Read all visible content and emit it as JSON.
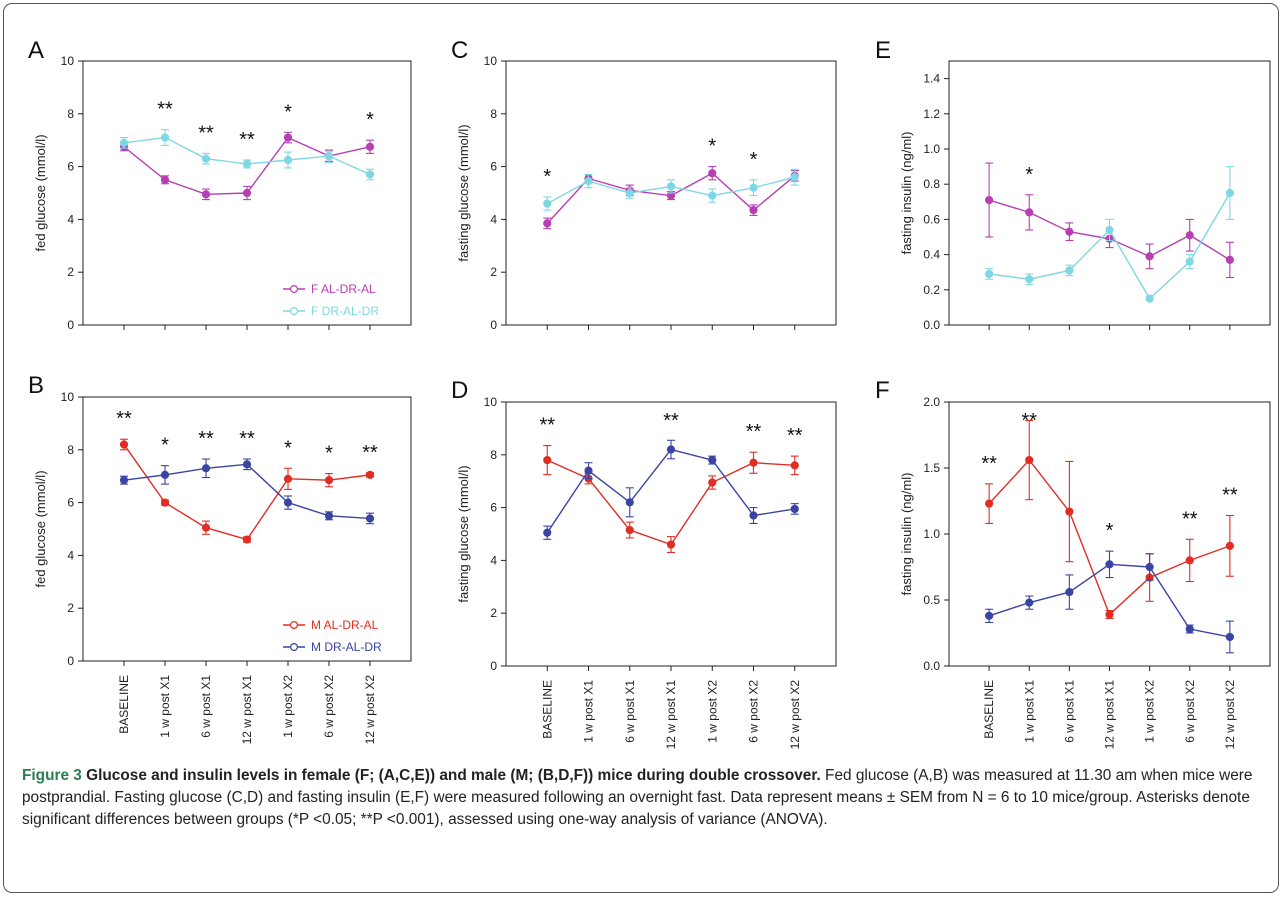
{
  "caption": {
    "figure_label": "Figure 3",
    "title": "Glucose and insulin levels in female (F; (A,C,E)) and male (M; (B,D,F)) mice during double crossover.",
    "body": "Fed glucose (A,B) was measured at 11.30 am when mice were postprandial. Fasting glucose (C,D) and fasting insulin (E,F) were measured following an overnight fast. Data represent means ± SEM from N = 6 to 10 mice/group. Asterisks denote significant differences between groups (*P <0.05; **P <0.001), assessed using one-way analysis of variance (ANOVA)."
  },
  "colors": {
    "female_al_dr_al": "#b83fb3",
    "female_dr_al_dr": "#7ed8e4",
    "male_al_dr_al": "#e12e24",
    "male_dr_al_dr": "#3a45a3"
  },
  "chart_data": [
    {
      "panel": "A",
      "type": "line",
      "categories": [
        "BASELINE",
        "1 w post X1",
        "6 w post X1",
        "12 w post X1",
        "1 w post X2",
        "6 w post X2",
        "12 w post X2"
      ],
      "ylabel": "fed glucose (mmol/l)",
      "ylim": [
        0,
        10
      ],
      "yticks": [
        0,
        2,
        4,
        6,
        8,
        10
      ],
      "show_xlabels": false,
      "legend": "bottom-right",
      "series": [
        {
          "name": "F AL-DR-AL",
          "color": "#b83fb3",
          "marker": "filled-circle",
          "values": [
            6.75,
            5.5,
            4.95,
            5.0,
            7.1,
            6.4,
            6.75
          ],
          "sem": [
            0.15,
            0.15,
            0.2,
            0.25,
            0.2,
            0.2,
            0.25
          ]
        },
        {
          "name": "F DR-AL-DR",
          "color": "#7ed8e4",
          "marker": "filled-circle",
          "values": [
            6.9,
            7.1,
            6.3,
            6.1,
            6.25,
            6.4,
            5.7
          ],
          "sem": [
            0.2,
            0.3,
            0.2,
            0.15,
            0.3,
            0.25,
            0.2
          ]
        }
      ],
      "annotations": [
        "",
        "**",
        "**",
        "**",
        "*",
        "",
        "*"
      ]
    },
    {
      "panel": "B",
      "type": "line",
      "categories": [
        "BASELINE",
        "1 w post X1",
        "6 w post X1",
        "12 w post X1",
        "1 w post X2",
        "6 w post X2",
        "12 w post X2"
      ],
      "ylabel": "fed glucose (mmol/l)",
      "ylim": [
        0,
        10
      ],
      "yticks": [
        0,
        2,
        4,
        6,
        8,
        10
      ],
      "show_xlabels": true,
      "legend": "bottom-right",
      "series": [
        {
          "name": "M AL-DR-AL",
          "color": "#e12e24",
          "marker": "filled-circle",
          "values": [
            8.2,
            6.0,
            5.05,
            4.6,
            6.9,
            6.85,
            7.05
          ],
          "sem": [
            0.2,
            0.1,
            0.25,
            0.1,
            0.4,
            0.25,
            0.08
          ]
        },
        {
          "name": "M DR-AL-DR",
          "color": "#3a45a3",
          "marker": "filled-circle",
          "values": [
            6.85,
            7.05,
            7.3,
            7.45,
            6.0,
            5.5,
            5.4
          ],
          "sem": [
            0.15,
            0.35,
            0.35,
            0.2,
            0.25,
            0.15,
            0.2
          ]
        }
      ],
      "annotations": [
        "**",
        "*",
        "**",
        "**",
        "*",
        "*",
        "**"
      ]
    },
    {
      "panel": "C",
      "type": "line",
      "categories": [
        "BASELINE",
        "1 w post X1",
        "6 w post X1",
        "12 w post X1",
        "1 w post X2",
        "6 w post X2",
        "12 w post X2"
      ],
      "ylabel": "fasting glucose (mmol/l)",
      "ylim": [
        0,
        10
      ],
      "yticks": [
        0,
        2,
        4,
        6,
        8,
        10
      ],
      "show_xlabels": false,
      "series": [
        {
          "name": "F AL-DR-AL",
          "color": "#b83fb3",
          "marker": "filled-circle",
          "values": [
            3.85,
            5.55,
            5.1,
            4.9,
            5.75,
            4.35,
            5.65
          ],
          "sem": [
            0.2,
            0.15,
            0.2,
            0.15,
            0.25,
            0.2,
            0.2
          ]
        },
        {
          "name": "F DR-AL-DR",
          "color": "#7ed8e4",
          "marker": "filled-circle",
          "values": [
            4.6,
            5.45,
            5.0,
            5.25,
            4.9,
            5.2,
            5.6
          ],
          "sem": [
            0.25,
            0.25,
            0.2,
            0.25,
            0.25,
            0.3,
            0.3
          ]
        }
      ],
      "annotations": [
        "*",
        "",
        "",
        "",
        "*",
        "*",
        ""
      ]
    },
    {
      "panel": "D",
      "type": "line",
      "categories": [
        "BASELINE",
        "1 w post X1",
        "6 w post X1",
        "12 w post X1",
        "1 w post X2",
        "6 w post X2",
        "12 w post X2"
      ],
      "ylabel": "fasting glucose (mmol/l)",
      "ylim": [
        0,
        10
      ],
      "yticks": [
        0,
        2,
        4,
        6,
        8,
        10
      ],
      "show_xlabels": true,
      "series": [
        {
          "name": "M AL-DR-AL",
          "color": "#e12e24",
          "marker": "filled-circle",
          "values": [
            7.8,
            7.1,
            5.15,
            4.6,
            6.95,
            7.7,
            7.6
          ],
          "sem": [
            0.55,
            0.2,
            0.3,
            0.3,
            0.25,
            0.4,
            0.35
          ]
        },
        {
          "name": "M DR-AL-DR",
          "color": "#3a45a3",
          "marker": "filled-circle",
          "values": [
            5.05,
            7.4,
            6.2,
            8.2,
            7.8,
            5.7,
            5.95
          ],
          "sem": [
            0.25,
            0.3,
            0.55,
            0.35,
            0.15,
            0.3,
            0.2
          ]
        }
      ],
      "annotations": [
        "**",
        "",
        "",
        "**",
        "",
        "**",
        "**"
      ]
    },
    {
      "panel": "E",
      "type": "line",
      "categories": [
        "BASELINE",
        "1 w post X1",
        "6 w post X1",
        "12 w post X1",
        "1 w post X2",
        "6 w post X2",
        "12 w post X2"
      ],
      "ylabel": "fasting insulin (ng/ml)",
      "ylim": [
        0,
        1.5
      ],
      "yticks": [
        0,
        0.2,
        0.4,
        0.6,
        0.8,
        1.0,
        1.2,
        1.4
      ],
      "ytick_labels": [
        "0.0",
        "0.2",
        "0.4",
        "0.6",
        "0.8",
        "1.0",
        "1.2",
        "1.4"
      ],
      "show_xlabels": false,
      "series": [
        {
          "name": "F AL-DR-AL",
          "color": "#b83fb3",
          "marker": "filled-circle",
          "values": [
            0.71,
            0.64,
            0.53,
            0.49,
            0.39,
            0.51,
            0.37
          ],
          "sem": [
            0.21,
            0.1,
            0.05,
            0.05,
            0.07,
            0.09,
            0.1
          ]
        },
        {
          "name": "F DR-AL-DR",
          "color": "#7ed8e4",
          "marker": "filled-circle",
          "values": [
            0.29,
            0.26,
            0.31,
            0.54,
            0.15,
            0.36,
            0.75
          ],
          "sem": [
            0.03,
            0.03,
            0.03,
            0.06,
            0.01,
            0.04,
            0.15
          ]
        }
      ],
      "annotations": [
        "",
        "*",
        "",
        "",
        "",
        "",
        ""
      ]
    },
    {
      "panel": "F",
      "type": "line",
      "categories": [
        "BASELINE",
        "1 w post X1",
        "6 w post X1",
        "12 w post X1",
        "1 w post X2",
        "6 w post X2",
        "12 w post X2"
      ],
      "ylabel": "fasting insulin (ng/ml)",
      "ylim": [
        0,
        2.0
      ],
      "yticks": [
        0,
        0.5,
        1.0,
        1.5,
        2.0
      ],
      "ytick_labels": [
        "0.0",
        "0.5",
        "1.0",
        "1.5",
        "2.0"
      ],
      "show_xlabels": true,
      "series": [
        {
          "name": "M AL-DR-AL",
          "color": "#e12e24",
          "marker": "filled-circle",
          "values": [
            1.23,
            1.56,
            1.17,
            0.39,
            0.67,
            0.8,
            0.91
          ],
          "sem": [
            0.15,
            0.3,
            0.38,
            0.03,
            0.18,
            0.16,
            0.23
          ]
        },
        {
          "name": "M DR-AL-DR",
          "color": "#3a45a3",
          "marker": "filled-circle",
          "values": [
            0.38,
            0.48,
            0.56,
            0.77,
            0.75,
            0.28,
            0.22
          ],
          "sem": [
            0.05,
            0.05,
            0.13,
            0.1,
            0.1,
            0.03,
            0.12
          ]
        }
      ],
      "annotations": [
        "**",
        "**",
        "",
        "*",
        "",
        "**",
        "**"
      ]
    }
  ]
}
